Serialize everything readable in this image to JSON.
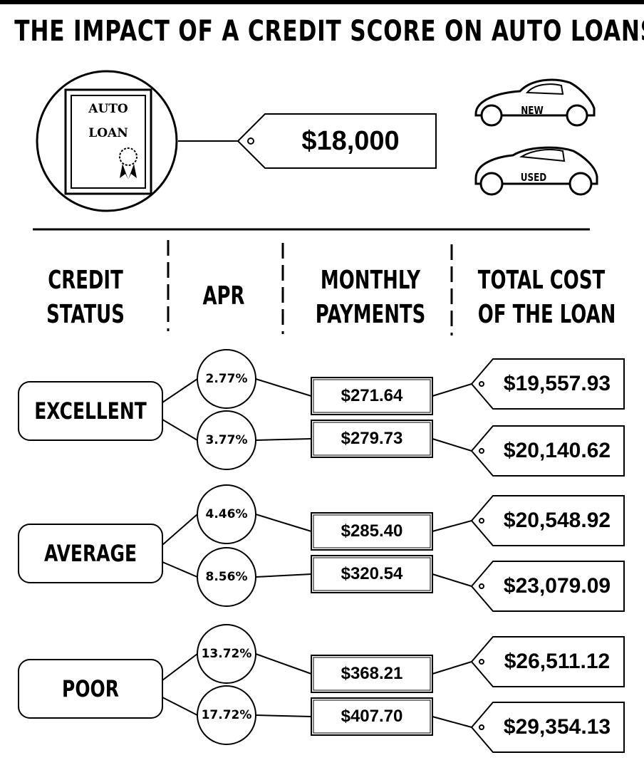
{
  "title": "THE IMPACT OF A CREDIT SCORE ON AUTO LOANS",
  "loan": {
    "document_line1": "AUTO",
    "document_line2": "LOAN",
    "amount": "$18,000",
    "cars": {
      "new_label": "NEW",
      "used_label": "USED"
    }
  },
  "headers": {
    "credit_status": "CREDIT\nSTATUS",
    "apr": "APR",
    "monthly_payments": "MONTHLY\nPAYMENTS",
    "total_cost": "TOTAL COST\nOF THE LOAN"
  },
  "rows": [
    {
      "status": "EXCELLENT",
      "options": [
        {
          "apr": "2.77%",
          "monthly": "$271.64",
          "total": "$19,557.93"
        },
        {
          "apr": "3.77%",
          "monthly": "$279.73",
          "total": "$20,140.62"
        }
      ]
    },
    {
      "status": "AVERAGE",
      "options": [
        {
          "apr": "4.46%",
          "monthly": "$285.40",
          "total": "$20,548.92"
        },
        {
          "apr": "8.56%",
          "monthly": "$320.54",
          "total": "$23,079.09"
        }
      ]
    },
    {
      "status": "POOR",
      "options": [
        {
          "apr": "13.72%",
          "monthly": "$368.21",
          "total": "$26,511.12"
        },
        {
          "apr": "17.72%",
          "monthly": "$407.70",
          "total": "$29,354.13"
        }
      ]
    }
  ]
}
